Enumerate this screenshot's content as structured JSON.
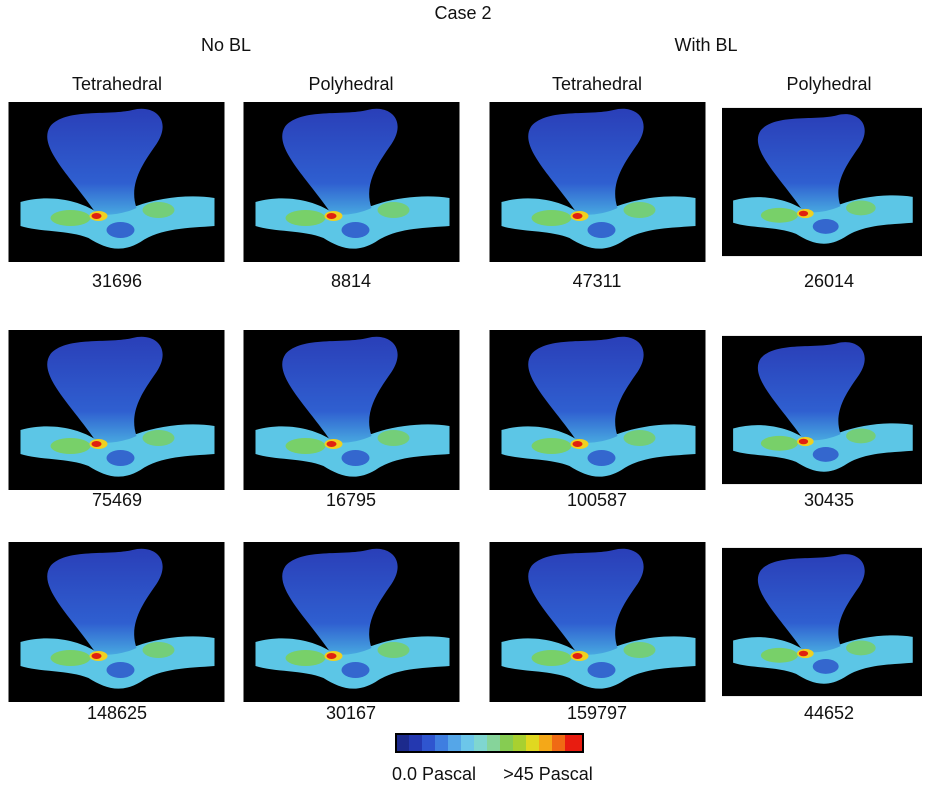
{
  "title": "Case 2",
  "groups": [
    {
      "label": "No BL",
      "columns": [
        "Tetrahedral",
        "Polyhedral"
      ]
    },
    {
      "label": "With BL",
      "columns": [
        "Tetrahedral",
        "Polyhedral"
      ]
    }
  ],
  "rows": [
    [
      31696,
      8814,
      47311,
      26014
    ],
    [
      75469,
      16795,
      100587,
      30435
    ],
    [
      148625,
      30167,
      159797,
      44652
    ]
  ],
  "colorbar": {
    "min_label": "0.0 Pascal",
    "max_label": ">45 Pascal"
  }
}
